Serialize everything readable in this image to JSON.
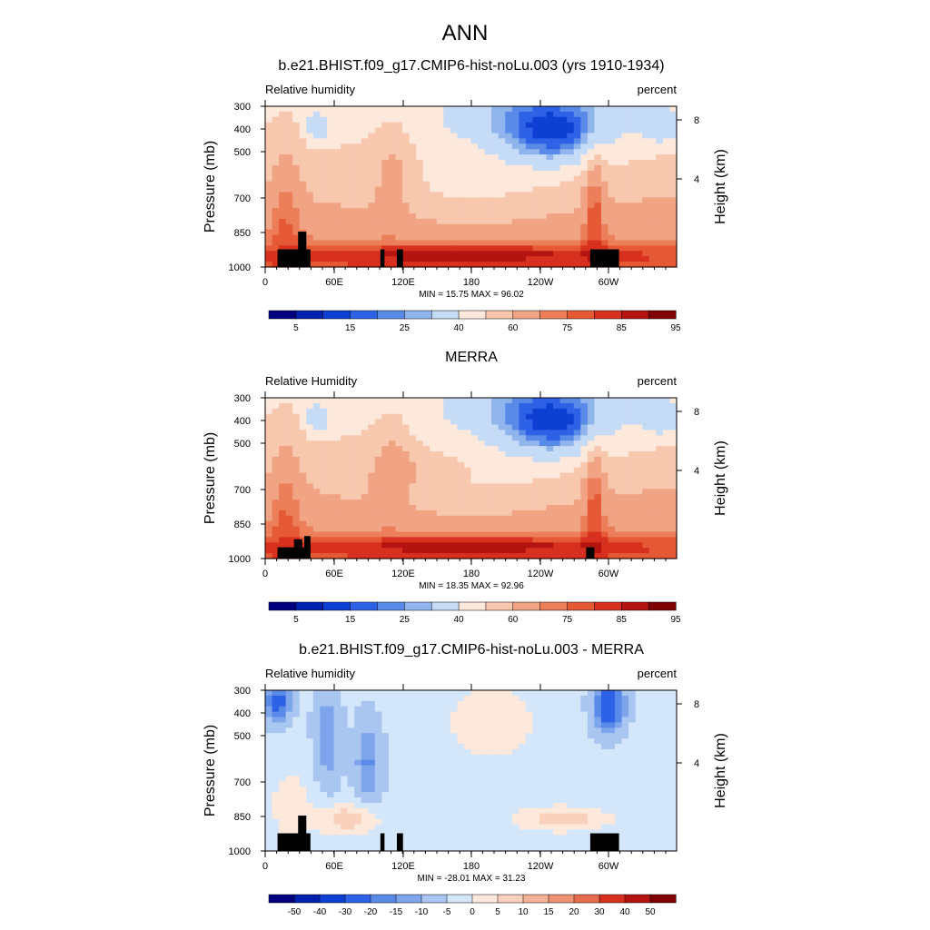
{
  "figure": {
    "title": "ANN"
  },
  "colors": {
    "abs_levels": [
      "#00007f",
      "#0020ae",
      "#0d3fd2",
      "#2e62e6",
      "#5a8ae8",
      "#90b4ec",
      "#c6dbf5",
      "#fde8dc",
      "#f7c7ae",
      "#f1a484",
      "#ec7e5a",
      "#e55a35",
      "#d7301f",
      "#b3140f",
      "#7f0000"
    ],
    "diff_levels": [
      "#00007f",
      "#0020ae",
      "#0d3fd2",
      "#2e62e6",
      "#5a8ae8",
      "#7ea4eb",
      "#a8c6f0",
      "#d4e6f9",
      "#fde8dc",
      "#f9d0bb",
      "#f4b298",
      "#ee9273",
      "#e86d4f",
      "#d7301f",
      "#b3140f",
      "#7f0000"
    ],
    "topo": "#000000"
  },
  "chart_data": [
    {
      "type": "heatmap",
      "title": "b.e21.BHIST.f09_g17.CMIP6-hist-noLu.003 (yrs 1910-1934)",
      "left_string": "Relative humidity",
      "right_string": "percent",
      "ylabel": "Pressure (mb)",
      "ylabel_right": "Height (km)",
      "y_ticks": [
        "300",
        "400",
        "500",
        "700",
        "850",
        "1000"
      ],
      "y_right_ticks": [
        "8",
        "4"
      ],
      "x_ticks": [
        "0",
        "60E",
        "120E",
        "180",
        "120W",
        "60W"
      ],
      "min_max": "MIN =  15.75  MAX =  96.02",
      "colorbar_labels": [
        "5",
        "15",
        "25",
        "40",
        "60",
        "75",
        "85",
        "95"
      ],
      "value_range": [
        15.75,
        96.02
      ]
    },
    {
      "type": "heatmap",
      "title": "MERRA",
      "left_string": "Relative Humidity",
      "right_string": "percent",
      "ylabel": "Pressure (mb)",
      "ylabel_right": "Height (km)",
      "y_ticks": [
        "300",
        "400",
        "500",
        "700",
        "850",
        "1000"
      ],
      "y_right_ticks": [
        "8",
        "4"
      ],
      "x_ticks": [
        "0",
        "60E",
        "120E",
        "180",
        "120W",
        "60W"
      ],
      "min_max": "MIN =  18.35  MAX =  92.96",
      "colorbar_labels": [
        "5",
        "15",
        "25",
        "40",
        "60",
        "75",
        "85",
        "95"
      ],
      "value_range": [
        18.35,
        92.96
      ]
    },
    {
      "type": "heatmap",
      "title": "b.e21.BHIST.f09_g17.CMIP6-hist-noLu.003 - MERRA",
      "left_string": "Relative humidity",
      "right_string": "percent",
      "ylabel": "Pressure (mb)",
      "ylabel_right": "Height (km)",
      "y_ticks": [
        "300",
        "400",
        "500",
        "700",
        "850",
        "1000"
      ],
      "y_right_ticks": [
        "8",
        "4"
      ],
      "x_ticks": [
        "0",
        "60E",
        "120E",
        "180",
        "120W",
        "60W"
      ],
      "min_max": "MIN = -28.01  MAX =  31.23",
      "colorbar_labels": [
        "-50",
        "-40",
        "-30",
        "-20",
        "-15",
        "-10",
        "-5",
        "0",
        "5",
        "10",
        "15",
        "20",
        "30",
        "40",
        "50"
      ],
      "value_range": [
        -28.01,
        31.23
      ]
    }
  ]
}
